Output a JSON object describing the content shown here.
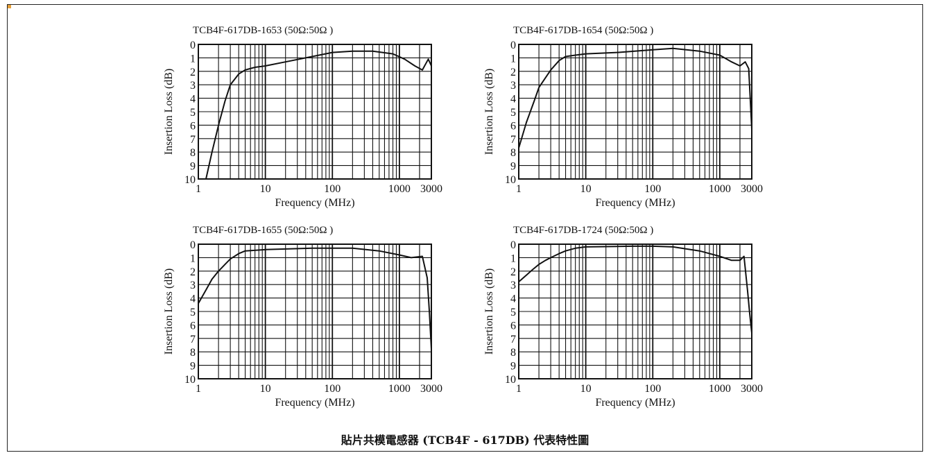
{
  "colors": {
    "accent": "#e8a13a",
    "grid": "#111111",
    "curve": "#111111",
    "frame": "#222222"
  },
  "caption": "貼片共模電感器 (TCB4F - 617DB) 代表特性圖",
  "chart_data": [
    {
      "type": "line",
      "title": "TCB4F-617DB-1653 (50Ω:50Ω )",
      "xlabel": "Frequency (MHz)",
      "ylabel": "Insertion Loss (dB)",
      "x_scale": "log",
      "xlim": [
        1,
        3000
      ],
      "ylim": [
        0,
        10
      ],
      "y_inverted": true,
      "grid": true,
      "x_ticks": [
        "1",
        "10",
        "100",
        "1000",
        "3000"
      ],
      "y_ticks": [
        "0",
        "1",
        "2",
        "3",
        "4",
        "5",
        "6",
        "7",
        "8",
        "9",
        "10"
      ],
      "series": [
        {
          "x": [
            1.3,
            1.6,
            2,
            2.5,
            3,
            4,
            5,
            7,
            10,
            20,
            50,
            100,
            200,
            400,
            800,
            1200,
            1700,
            2200,
            2500,
            2700,
            3000
          ],
          "y": [
            10,
            8,
            6,
            4.2,
            3,
            2.2,
            1.9,
            1.7,
            1.6,
            1.3,
            0.9,
            0.6,
            0.5,
            0.5,
            0.7,
            1.1,
            1.6,
            1.9,
            1.4,
            1.1,
            1.6
          ]
        }
      ]
    },
    {
      "type": "line",
      "title": "TCB4F-617DB-1654 (50Ω:50Ω )",
      "xlabel": "Frequency (MHz)",
      "ylabel": "Insertion Loss (dB)",
      "x_scale": "log",
      "xlim": [
        1,
        3000
      ],
      "ylim": [
        0,
        10
      ],
      "y_inverted": true,
      "grid": true,
      "x_ticks": [
        "1",
        "10",
        "100",
        "1000",
        "3000"
      ],
      "y_ticks": [
        "0",
        "1",
        "2",
        "3",
        "4",
        "5",
        "6",
        "7",
        "8",
        "9",
        "10"
      ],
      "series": [
        {
          "x": [
            1,
            1.3,
            1.7,
            2,
            3,
            4,
            5,
            7,
            10,
            30,
            100,
            200,
            500,
            1000,
            1500,
            2000,
            2400,
            2700,
            3000
          ],
          "y": [
            7.7,
            5.8,
            4.2,
            3.2,
            1.9,
            1.2,
            0.9,
            0.8,
            0.7,
            0.6,
            0.4,
            0.3,
            0.5,
            0.8,
            1.3,
            1.6,
            1.3,
            1.8,
            6.3
          ]
        }
      ]
    },
    {
      "type": "line",
      "title": "TCB4F-617DB-1655 (50Ω:50Ω )",
      "xlabel": "Frequency (MHz)",
      "ylabel": "Insertion Loss (dB)",
      "x_scale": "log",
      "xlim": [
        1,
        3000
      ],
      "ylim": [
        0,
        10
      ],
      "y_inverted": true,
      "grid": true,
      "x_ticks": [
        "1",
        "10",
        "100",
        "1000",
        "3000"
      ],
      "y_ticks": [
        "0",
        "1",
        "2",
        "3",
        "4",
        "5",
        "6",
        "7",
        "8",
        "9",
        "10"
      ],
      "series": [
        {
          "x": [
            1,
            1.3,
            1.6,
            2,
            2.5,
            3,
            4,
            5,
            10,
            50,
            200,
            500,
            1000,
            1500,
            2200,
            2600,
            2800,
            3000
          ],
          "y": [
            4.4,
            3.4,
            2.6,
            2.0,
            1.5,
            1.1,
            0.7,
            0.5,
            0.4,
            0.3,
            0.3,
            0.5,
            0.8,
            1.0,
            0.9,
            2.5,
            5.0,
            7.8
          ]
        }
      ]
    },
    {
      "type": "line",
      "title": "TCB4F-617DB-1724 (50Ω:50Ω )",
      "xlabel": "Frequency (MHz)",
      "ylabel": "Insertion Loss (dB)",
      "x_scale": "log",
      "xlim": [
        1,
        3000
      ],
      "ylim": [
        0,
        10
      ],
      "y_inverted": true,
      "grid": true,
      "x_ticks": [
        "1",
        "10",
        "100",
        "1000",
        "3000"
      ],
      "y_ticks": [
        "0",
        "1",
        "2",
        "3",
        "4",
        "5",
        "6",
        "7",
        "8",
        "9",
        "10"
      ],
      "series": [
        {
          "x": [
            1,
            1.3,
            1.6,
            2,
            2.5,
            3,
            4,
            5,
            7,
            10,
            50,
            100,
            200,
            500,
            1000,
            1500,
            2000,
            2300,
            2600,
            2800,
            3000
          ],
          "y": [
            2.8,
            2.3,
            1.9,
            1.5,
            1.2,
            1.0,
            0.7,
            0.5,
            0.3,
            0.2,
            0.15,
            0.15,
            0.2,
            0.5,
            0.9,
            1.2,
            1.2,
            0.9,
            3.5,
            5.2,
            6.6
          ]
        }
      ]
    }
  ]
}
